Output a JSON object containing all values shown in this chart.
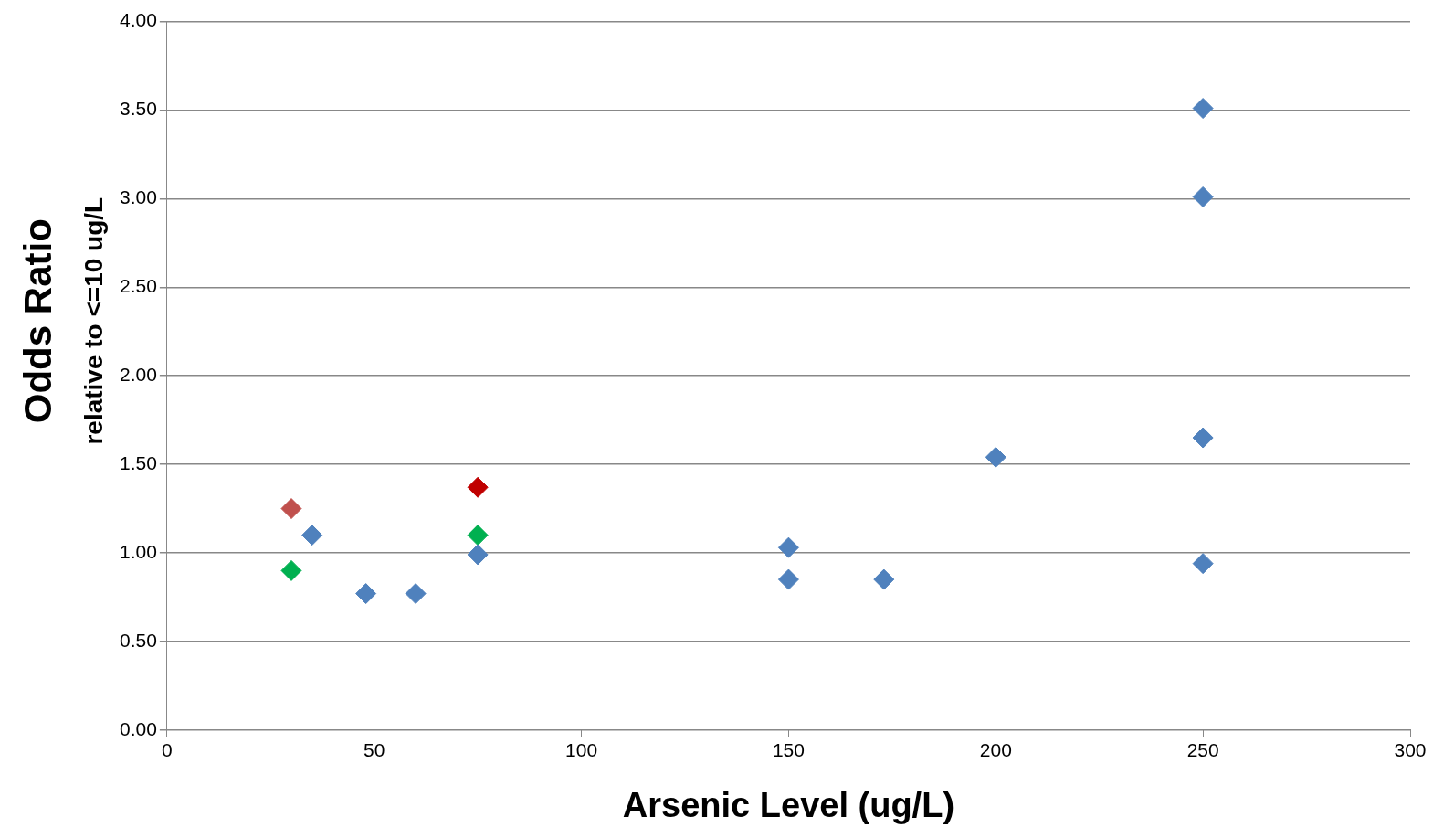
{
  "chart_data": {
    "type": "scatter",
    "xlabel": "Arsenic Level (ug/L)",
    "ylabel": "Odds Ratio\nrelative to <=10 ug/L",
    "xlim": [
      0,
      300
    ],
    "xticks": [
      0,
      50,
      100,
      150,
      200,
      250,
      300
    ],
    "ylim": [
      0,
      4
    ],
    "yticks": [
      {
        "value": 0,
        "label": "0.00"
      },
      {
        "value": 0.5,
        "label": "0.50"
      },
      {
        "value": 1,
        "label": "1.00"
      },
      {
        "value": 1.5,
        "label": "1.50"
      },
      {
        "value": 2,
        "label": "2.00"
      },
      {
        "value": 2.5,
        "label": "2.50"
      },
      {
        "value": 3,
        "label": "3.00"
      },
      {
        "value": 3.5,
        "label": "3.50"
      },
      {
        "value": 4,
        "label": "4.00"
      }
    ],
    "grid": "y",
    "marker": "diamond",
    "series": [
      {
        "color": "#4f81bd",
        "x": [
          35,
          48,
          60,
          75,
          150,
          150,
          173,
          200,
          250,
          250,
          250,
          250
        ],
        "values": [
          1.1,
          0.77,
          0.77,
          0.99,
          1.03,
          0.85,
          0.85,
          1.54,
          3.51,
          3.01,
          1.65,
          0.94
        ]
      },
      {
        "color": "#c0504d",
        "x": [
          30
        ],
        "values": [
          1.25
        ]
      },
      {
        "color": "#c00000",
        "x": [
          75
        ],
        "values": [
          1.37
        ]
      },
      {
        "color": "#00b050",
        "x": [
          30,
          75
        ],
        "values": [
          0.9,
          1.1
        ]
      }
    ]
  }
}
